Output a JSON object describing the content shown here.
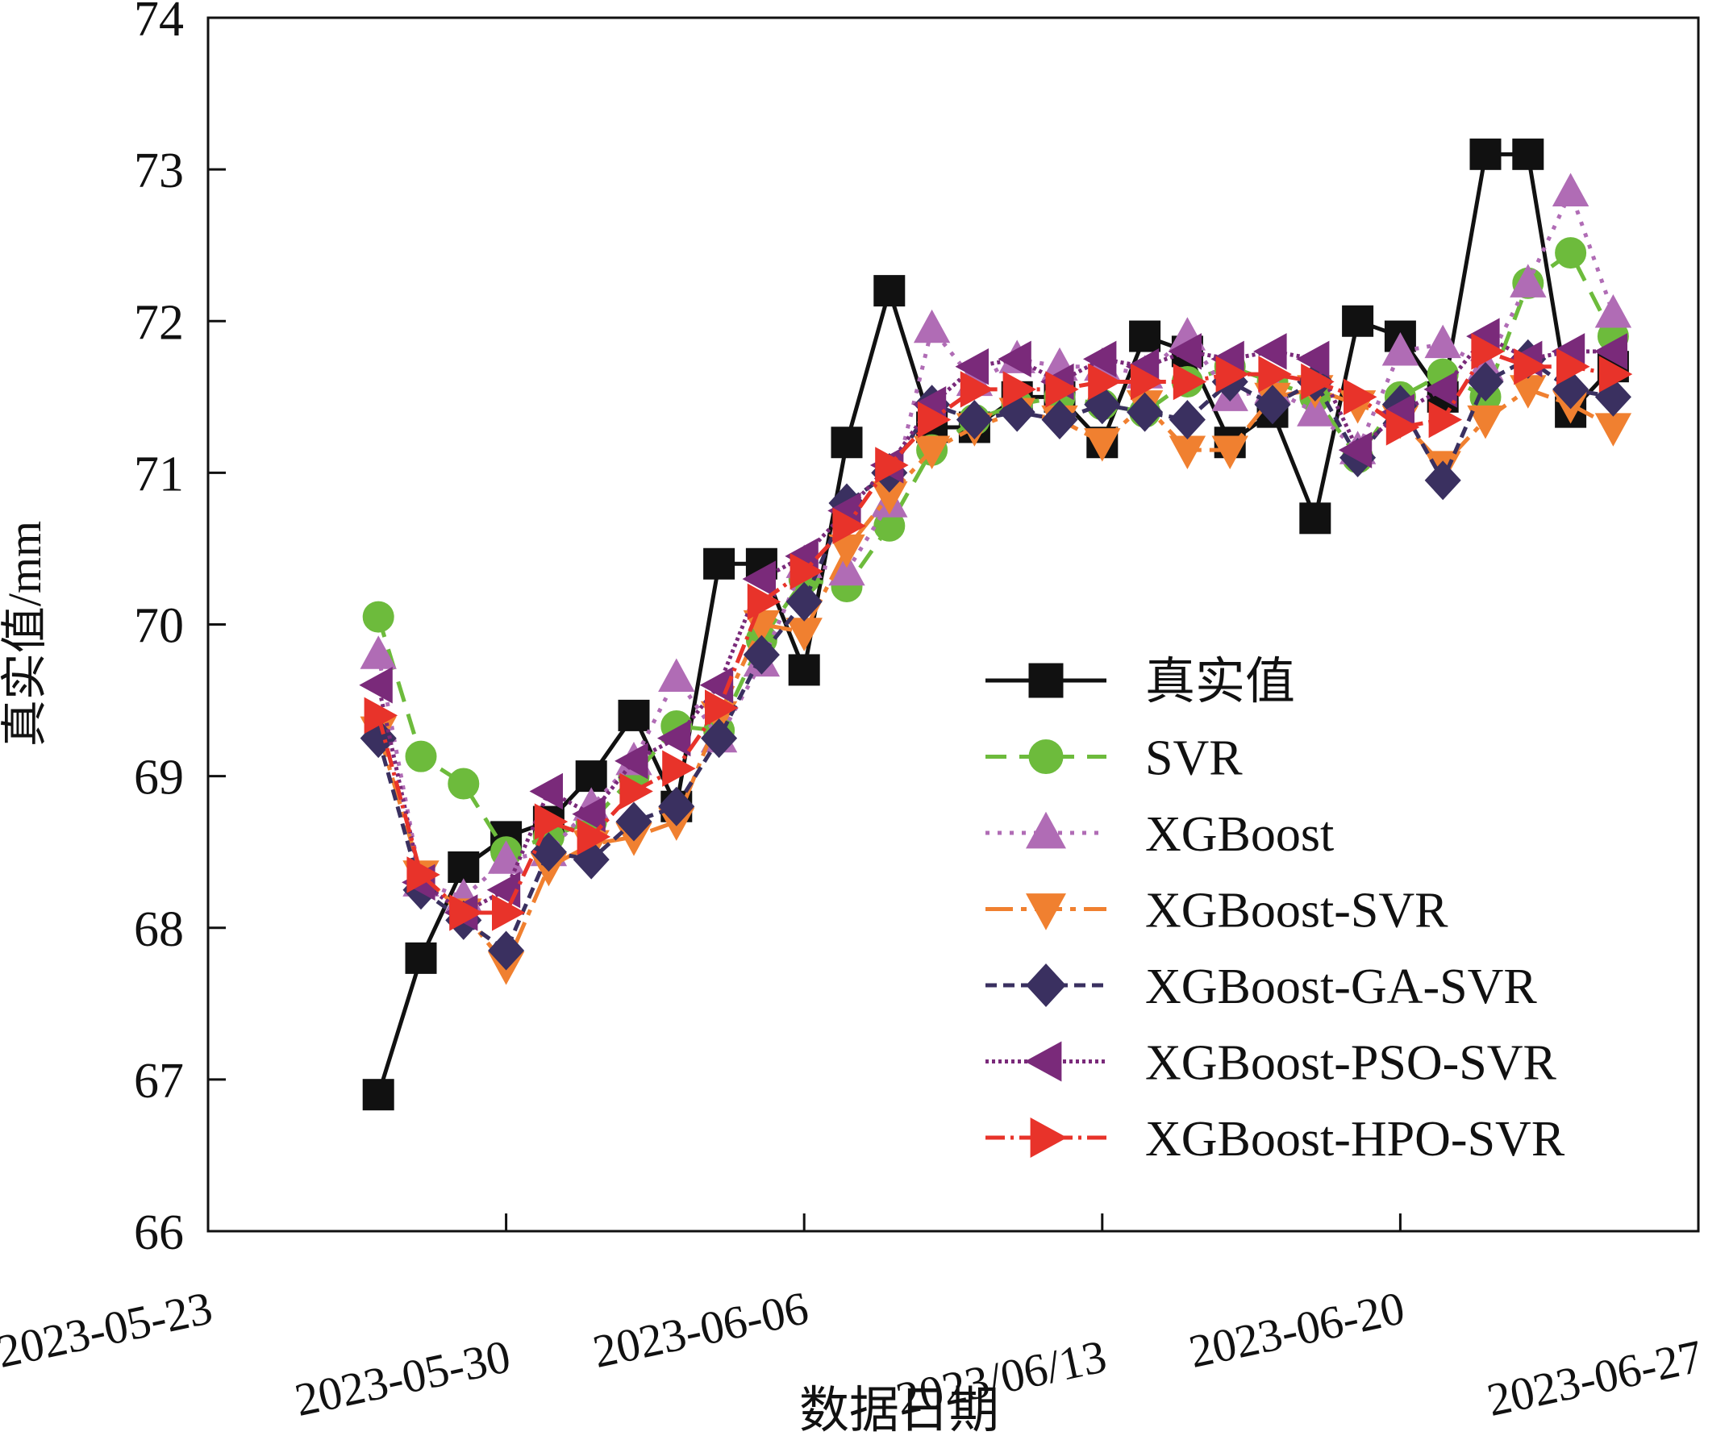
{
  "chart_data": {
    "type": "line",
    "title": "",
    "xlabel": "数据日期",
    "ylabel": "真实值/mm",
    "ylim": [
      66,
      74
    ],
    "xlim": [
      "2023-05-23",
      "2023-06-27"
    ],
    "yticks": [
      "66",
      "67",
      "68",
      "69",
      "70",
      "71",
      "72",
      "73",
      "74"
    ],
    "xticks": [
      {
        "date": "2023-05-23",
        "label": "2023-05-23"
      },
      {
        "date": "2023-05-30",
        "label": "2023-05-30"
      },
      {
        "date": "2023-06-06",
        "label": "2023-06-06"
      },
      {
        "date": "2023-06-13",
        "label": "2023/06/13"
      },
      {
        "date": "2023-06-20",
        "label": "2023-06-20"
      },
      {
        "date": "2023-06-27",
        "label": "2023-06-27"
      }
    ],
    "grid": false,
    "legend_position": "lower-right",
    "x": [
      "2023-05-27",
      "2023-05-28",
      "2023-05-29",
      "2023-05-30",
      "2023-05-31",
      "2023-06-01",
      "2023-06-02",
      "2023-06-03",
      "2023-06-04",
      "2023-06-05",
      "2023-06-06",
      "2023-06-07",
      "2023-06-08",
      "2023-06-09",
      "2023-06-10",
      "2023-06-11",
      "2023-06-12",
      "2023-06-13",
      "2023-06-14",
      "2023-06-15",
      "2023-06-16",
      "2023-06-17",
      "2023-06-18",
      "2023-06-19",
      "2023-06-20",
      "2023-06-21",
      "2023-06-22",
      "2023-06-23",
      "2023-06-24",
      "2023-06-25"
    ],
    "series": [
      {
        "name": "真实值",
        "color": "#111111",
        "dash": "",
        "marker": "square",
        "values": [
          66.9,
          67.8,
          68.4,
          68.6,
          68.7,
          69.0,
          69.4,
          68.8,
          70.4,
          70.4,
          69.7,
          71.2,
          72.2,
          71.3,
          71.3,
          71.5,
          71.5,
          71.2,
          71.9,
          71.8,
          71.2,
          71.4,
          70.7,
          72.0,
          71.9,
          71.5,
          73.1,
          73.1,
          71.4,
          71.7
        ]
      },
      {
        "name": "SVR",
        "color": "#6dbb3c",
        "dash": "26,16",
        "marker": "circle",
        "values": [
          70.05,
          69.13,
          68.95,
          68.5,
          68.6,
          68.7,
          69.0,
          69.33,
          69.3,
          69.9,
          70.3,
          70.25,
          70.65,
          71.15,
          71.35,
          71.45,
          71.5,
          71.45,
          71.4,
          71.6,
          71.7,
          71.6,
          71.5,
          71.1,
          71.5,
          71.65,
          71.5,
          72.25,
          72.45,
          71.9
        ]
      },
      {
        "name": "XGBoost",
        "color": "#b06cb5",
        "dash": "5,10",
        "marker": "triangle-up",
        "values": [
          69.8,
          68.3,
          68.2,
          68.45,
          68.5,
          68.8,
          69.1,
          69.65,
          69.25,
          69.75,
          70.4,
          70.35,
          70.8,
          71.95,
          71.6,
          71.75,
          71.7,
          71.7,
          71.65,
          71.9,
          71.5,
          71.55,
          71.4,
          71.15,
          71.8,
          71.85,
          71.7,
          72.25,
          72.85,
          72.05
        ]
      },
      {
        "name": "XGBoost-SVR",
        "color": "#f08030",
        "dash": "34,10,7,10",
        "marker": "triangle-down",
        "values": [
          69.3,
          68.35,
          68.1,
          67.75,
          68.4,
          68.55,
          68.6,
          68.7,
          69.4,
          70.0,
          69.95,
          70.5,
          70.85,
          71.15,
          71.3,
          71.4,
          71.35,
          71.2,
          71.45,
          71.15,
          71.15,
          71.5,
          71.55,
          71.45,
          71.35,
          71.05,
          71.35,
          71.55,
          71.45,
          71.3
        ]
      },
      {
        "name": "XGBoost-GA-SVR",
        "color": "#3a3060",
        "dash": "14,8",
        "marker": "diamond",
        "values": [
          69.25,
          68.25,
          68.05,
          67.85,
          68.5,
          68.45,
          68.7,
          68.8,
          69.25,
          69.8,
          70.15,
          70.8,
          71.0,
          71.45,
          71.35,
          71.4,
          71.35,
          71.45,
          71.4,
          71.35,
          71.6,
          71.45,
          71.6,
          71.1,
          71.45,
          70.95,
          71.6,
          71.75,
          71.55,
          71.5
        ]
      },
      {
        "name": "XGBoost-PSO-SVR",
        "color": "#7a2a7a",
        "dash": "4,4",
        "marker": "triangle-left",
        "values": [
          69.6,
          68.3,
          68.1,
          68.25,
          68.9,
          68.75,
          69.1,
          69.25,
          69.6,
          70.3,
          70.45,
          70.75,
          71.05,
          71.45,
          71.7,
          71.75,
          71.6,
          71.75,
          71.7,
          71.8,
          71.75,
          71.8,
          71.75,
          71.15,
          71.4,
          71.55,
          71.9,
          71.75,
          71.8,
          71.8
        ]
      },
      {
        "name": "XGBoost-HPO-SVR",
        "color": "#e8332a",
        "dash": "24,7,4,7",
        "marker": "triangle-right",
        "values": [
          69.4,
          68.35,
          68.1,
          68.1,
          68.7,
          68.6,
          68.9,
          69.05,
          69.45,
          70.15,
          70.35,
          70.65,
          71.05,
          71.35,
          71.55,
          71.55,
          71.55,
          71.6,
          71.6,
          71.6,
          71.65,
          71.65,
          71.6,
          71.5,
          71.3,
          71.35,
          71.8,
          71.7,
          71.7,
          71.65
        ]
      }
    ]
  }
}
